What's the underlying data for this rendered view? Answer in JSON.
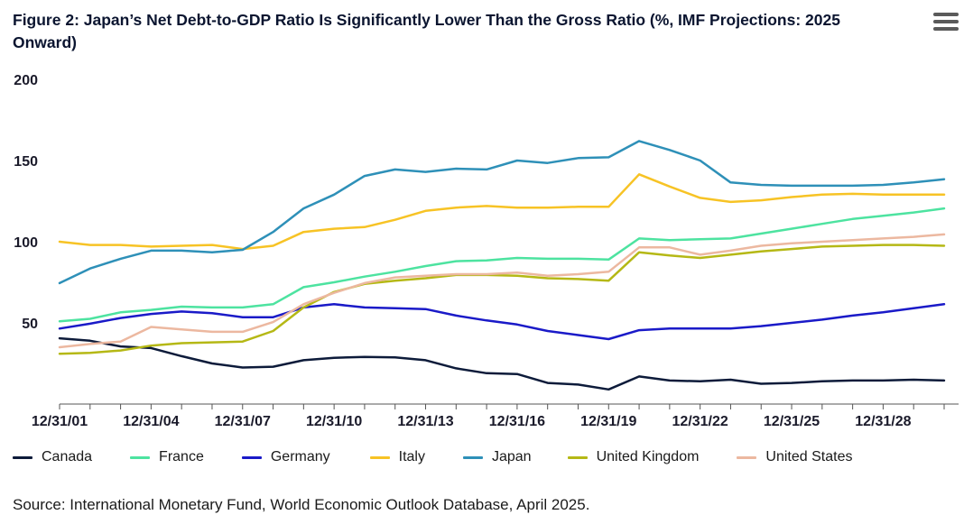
{
  "title": "Figure 2: Japan’s Net Debt-to-GDP Ratio Is Significantly Lower Than the Gross Ratio (%, IMF Projections: 2025 Onward)",
  "menu_icon": "hamburger-menu-icon",
  "source": "Source: International Monetary Fund, World Economic Outlook Database, April 2025.",
  "chart_data": {
    "type": "line",
    "title": "Figure 2: Japan’s Net Debt-to-GDP Ratio Is Significantly Lower Than the Gross Ratio (%, IMF Projections: 2025 Onward)",
    "xlabel": "",
    "ylabel": "",
    "x": [
      2001,
      2002,
      2003,
      2004,
      2005,
      2006,
      2007,
      2008,
      2009,
      2010,
      2011,
      2012,
      2013,
      2014,
      2015,
      2016,
      2017,
      2018,
      2019,
      2020,
      2021,
      2022,
      2023,
      2024,
      2025,
      2026,
      2027,
      2028,
      2029,
      2030
    ],
    "xlim": [
      2001,
      2030
    ],
    "ylim": [
      0,
      200
    ],
    "yticks": [
      50,
      100,
      150,
      200
    ],
    "xtick_values": [
      2001,
      2004,
      2007,
      2010,
      2013,
      2016,
      2019,
      2022,
      2025,
      2028
    ],
    "xtick_labels": [
      "12/31/01",
      "12/31/04",
      "12/31/07",
      "12/31/10",
      "12/31/13",
      "12/31/16",
      "12/31/19",
      "12/31/22",
      "12/31/25",
      "12/31/28"
    ],
    "legend_position": "bottom",
    "grid": false,
    "series": [
      {
        "name": "Canada",
        "color": "#0d1b3a",
        "values": [
          40.5,
          39,
          35.5,
          34.5,
          29.5,
          25,
          22.5,
          23,
          27,
          28.5,
          29,
          28.8,
          27,
          22,
          19,
          18.5,
          13,
          12,
          9,
          17,
          14.5,
          14,
          15,
          12.5,
          13,
          14,
          14.5,
          14.5,
          15,
          14.5
        ]
      },
      {
        "name": "France",
        "color": "#4de3a0",
        "values": [
          51,
          52.5,
          56.5,
          58,
          60,
          59.5,
          59.5,
          61.5,
          72,
          75,
          78.5,
          81.5,
          85,
          88,
          88.5,
          90,
          89.5,
          89.5,
          89,
          102,
          101,
          101.5,
          102,
          105,
          108,
          111,
          114,
          116,
          118,
          120.5
        ]
      },
      {
        "name": "Germany",
        "color": "#1a1ac8",
        "values": [
          46.5,
          49.5,
          53,
          55.5,
          57,
          56,
          53.5,
          53.5,
          59.5,
          61.5,
          59.5,
          59,
          58.5,
          54.5,
          51.5,
          49,
          45,
          42.5,
          40,
          45.5,
          46.5,
          46.5,
          46.5,
          48,
          50,
          52,
          54.5,
          56.5,
          59,
          61.5
        ]
      },
      {
        "name": "Italy",
        "color": "#f7c325",
        "values": [
          100,
          98,
          98,
          97,
          97.5,
          98,
          95.5,
          97.5,
          106,
          108,
          109,
          113.5,
          119,
          121,
          122,
          121,
          121,
          121.5,
          121.5,
          141.5,
          134,
          127,
          124.5,
          125.5,
          127.5,
          129,
          129.5,
          129,
          129,
          129
        ]
      },
      {
        "name": "Japan",
        "color": "#2e90b8",
        "values": [
          74.5,
          83.5,
          89.5,
          94.5,
          94.5,
          93.5,
          95,
          106,
          120.5,
          129,
          140.5,
          144.5,
          143,
          145,
          144.5,
          150,
          148.5,
          151.5,
          152,
          162,
          156.5,
          150,
          136.5,
          135,
          134.5,
          134.5,
          134.5,
          135,
          136.5,
          138.5
        ]
      },
      {
        "name": "United Kingdom",
        "color": "#b5b815",
        "values": [
          31,
          31.5,
          33,
          36,
          37.5,
          38,
          38.5,
          45,
          59.5,
          69,
          74,
          76,
          77.5,
          79.5,
          79.5,
          79,
          77.5,
          77,
          76,
          93.5,
          91.5,
          90,
          92,
          94,
          95.5,
          97,
          97.5,
          98,
          98,
          97.5
        ]
      },
      {
        "name": "United States",
        "color": "#ecb8a0",
        "values": [
          35,
          37,
          38.5,
          47.5,
          46,
          44.5,
          44.5,
          50.5,
          61.5,
          68.5,
          74.5,
          78,
          79,
          80,
          80,
          81,
          79,
          80,
          81.5,
          96.5,
          96.5,
          92,
          94.5,
          97.5,
          99,
          100,
          101,
          102,
          103,
          104.5
        ]
      }
    ]
  }
}
